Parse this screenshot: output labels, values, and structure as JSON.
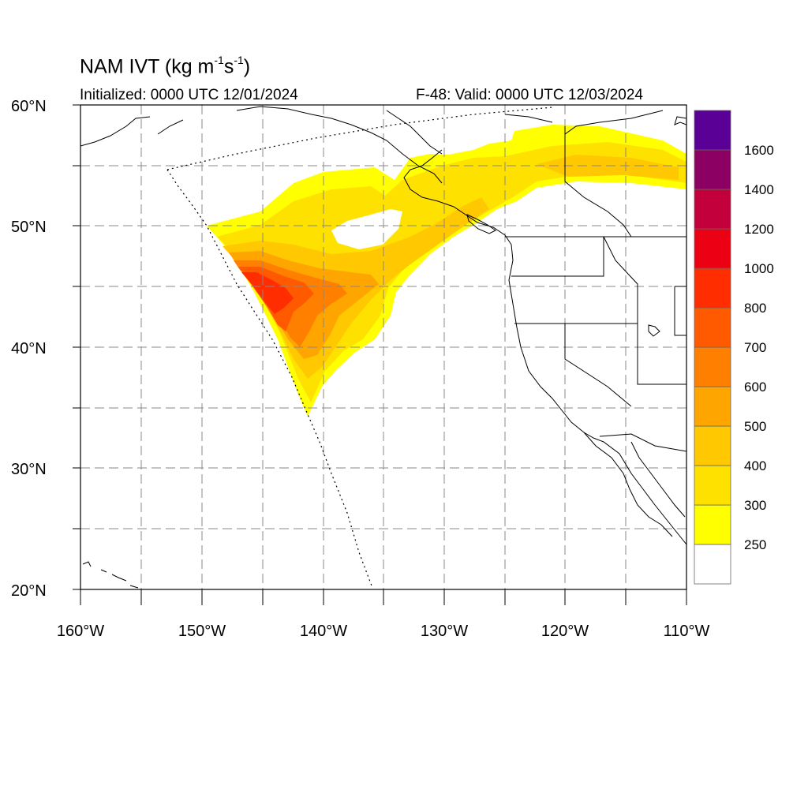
{
  "header": {
    "title_main": "NAM IVT (kg m",
    "title_exp1": "-1",
    "title_mid": "s",
    "title_exp2": "-1",
    "title_end": ")",
    "initialized": "Initialized: 0000 UTC 12/01/2024",
    "valid": "F-48: Valid: 0000 UTC 12/03/2024"
  },
  "map": {
    "lat_labels": [
      "60°N",
      "50°N",
      "40°N",
      "30°N",
      "20°N"
    ],
    "lon_labels": [
      "160°W",
      "150°W",
      "140°W",
      "130°W",
      "120°W",
      "110°W"
    ],
    "lat_range": [
      20,
      60
    ],
    "lon_range": [
      -160,
      -110
    ]
  },
  "colorbar": {
    "labels": [
      "250",
      "300",
      "400",
      "500",
      "600",
      "700",
      "800",
      "1000",
      "1200",
      "1400",
      "1600"
    ],
    "colors": [
      "#ffffff",
      "#ffff00",
      "#ffe100",
      "#ffc800",
      "#ffa500",
      "#ff7f00",
      "#ff5a00",
      "#ff2d00",
      "#eb0014",
      "#c3003c",
      "#8c0064",
      "#5a0096"
    ]
  }
}
